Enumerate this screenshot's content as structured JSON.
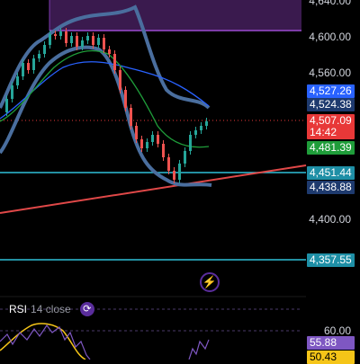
{
  "price_axis": {
    "levels": [
      "4,640.00",
      "4,600.00",
      "4,560.00",
      "4,400.00"
    ]
  },
  "tags": {
    "ma_upper": {
      "value": "4,527.26",
      "color": "#2962ff"
    },
    "bb_upper": {
      "value": "4,524.38",
      "color": "#1e3a6e"
    },
    "last_price": {
      "value": "4,507.09",
      "time": "14:42",
      "color": "#e83838"
    },
    "ma_green": {
      "value": "4,481.39",
      "color": "#1f9d3a"
    },
    "level_1": {
      "value": "4,451.44",
      "color": "#1e8fa6"
    },
    "bb_lower": {
      "value": "4,438.88",
      "color": "#1e3a6e"
    },
    "level_2": {
      "value": "4,357.55",
      "color": "#1e8fa6"
    }
  },
  "rsi": {
    "name": "RSI",
    "params": "14 close",
    "levels": [
      "60.00"
    ],
    "tags": {
      "rsi_value": {
        "value": "55.88",
        "color": "#7e57c2"
      },
      "rsi_ma": {
        "value": "50.43",
        "color": "#f5c518"
      }
    }
  },
  "icons": {
    "lightning": "lightning-icon",
    "settings": "gear-icon"
  },
  "colors": {
    "background": "#000000",
    "resistance_zone": "#3a1a4e",
    "trend_line": "#e04848",
    "horizontal_levels": "#2fc0d8",
    "bollinger": "#4a6e9e"
  }
}
